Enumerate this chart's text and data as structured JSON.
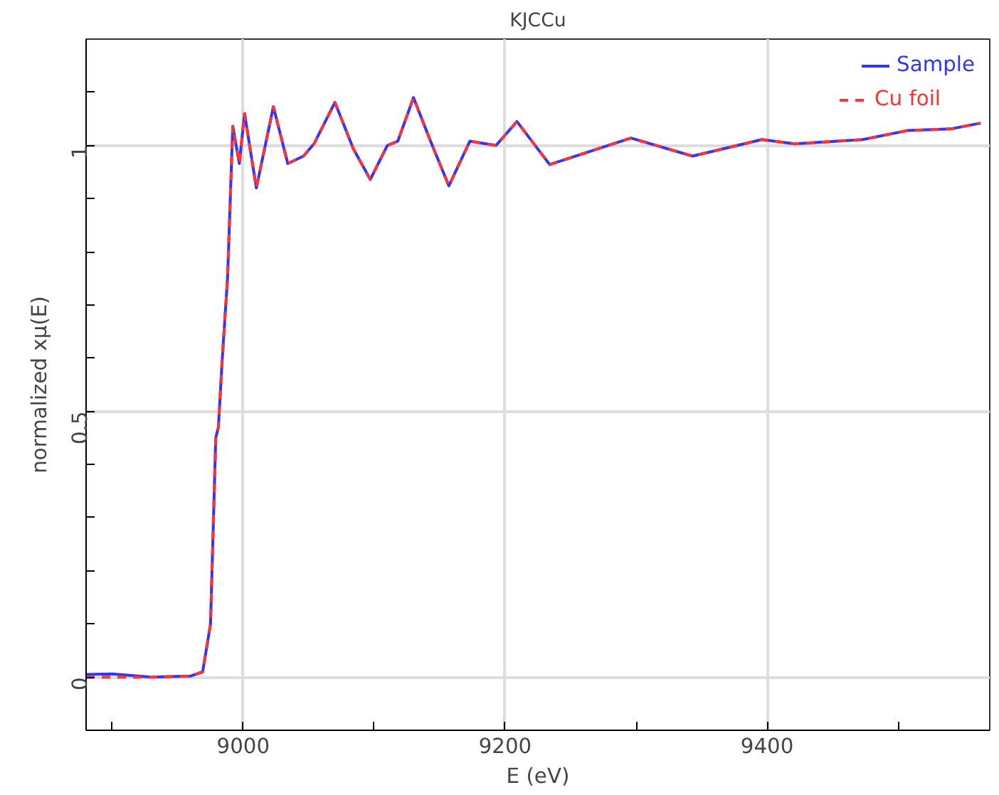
{
  "chart_data": {
    "type": "line",
    "title": "KJCCu",
    "xlabel": "E (eV)",
    "ylabel": "normalized xμ(E)",
    "x": [
      8880,
      8900,
      8930,
      8960,
      8969,
      8975,
      8979,
      8981,
      8984,
      8988,
      8992,
      8997,
      9001,
      9010,
      9023,
      9034,
      9046,
      9054,
      9070,
      9084,
      9097,
      9110,
      9118,
      9130,
      9143,
      9157,
      9173,
      9193,
      9209,
      9234,
      9296,
      9343,
      9396,
      9421,
      9473,
      9507,
      9540,
      9563
    ],
    "series": [
      {
        "name": "Sample",
        "color": "#3333ff",
        "values": [
          0.005,
          0.006,
          0.0,
          0.002,
          0.01,
          0.1,
          0.45,
          0.47,
          0.6,
          0.75,
          1.036,
          0.966,
          1.06,
          0.92,
          1.073,
          0.966,
          0.98,
          1.003,
          1.081,
          0.994,
          0.936,
          1.0,
          1.008,
          1.09,
          1.008,
          0.924,
          1.008,
          1.0,
          1.045,
          0.964,
          1.014,
          0.98,
          1.011,
          1.003,
          1.011,
          1.028,
          1.031,
          1.042
        ]
      },
      {
        "name": "Cu foil",
        "color": "#ff3333",
        "line_style": "dashed",
        "values": [
          0.0,
          0.0,
          0.0,
          0.002,
          0.01,
          0.1,
          0.45,
          0.47,
          0.6,
          0.75,
          1.036,
          0.966,
          1.06,
          0.92,
          1.073,
          0.966,
          0.98,
          1.003,
          1.081,
          0.994,
          0.936,
          1.0,
          1.008,
          1.09,
          1.008,
          0.924,
          1.008,
          1.0,
          1.045,
          0.964,
          1.014,
          0.98,
          1.011,
          1.003,
          1.011,
          1.028,
          1.031,
          1.042
        ]
      }
    ],
    "xlim": [
      8880,
      9570
    ],
    "xticks": [
      {
        "value": 8900,
        "label": null
      },
      9000,
      {
        "value": 9100,
        "label": null
      },
      9200,
      {
        "value": 9300,
        "label": null
      },
      9400,
      {
        "value": 9500,
        "label": null
      }
    ],
    "ylim": [
      -0.1,
      1.2
    ],
    "yticks": [
      {
        "value": -0.1,
        "label": null
      },
      0,
      {
        "value": 0.1,
        "label": null
      },
      {
        "value": 0.2,
        "label": null
      },
      {
        "value": 0.3,
        "label": null
      },
      {
        "value": 0.4,
        "label": null
      },
      0.5,
      {
        "value": 0.6,
        "label": null
      },
      {
        "value": 0.7,
        "label": null
      },
      {
        "value": 0.8,
        "label": null
      },
      {
        "value": 0.9,
        "label": null
      },
      1,
      {
        "value": 1.1,
        "label": null
      }
    ],
    "grid": true,
    "legend": "top right",
    "line_style": "solid",
    "marker": "none"
  }
}
